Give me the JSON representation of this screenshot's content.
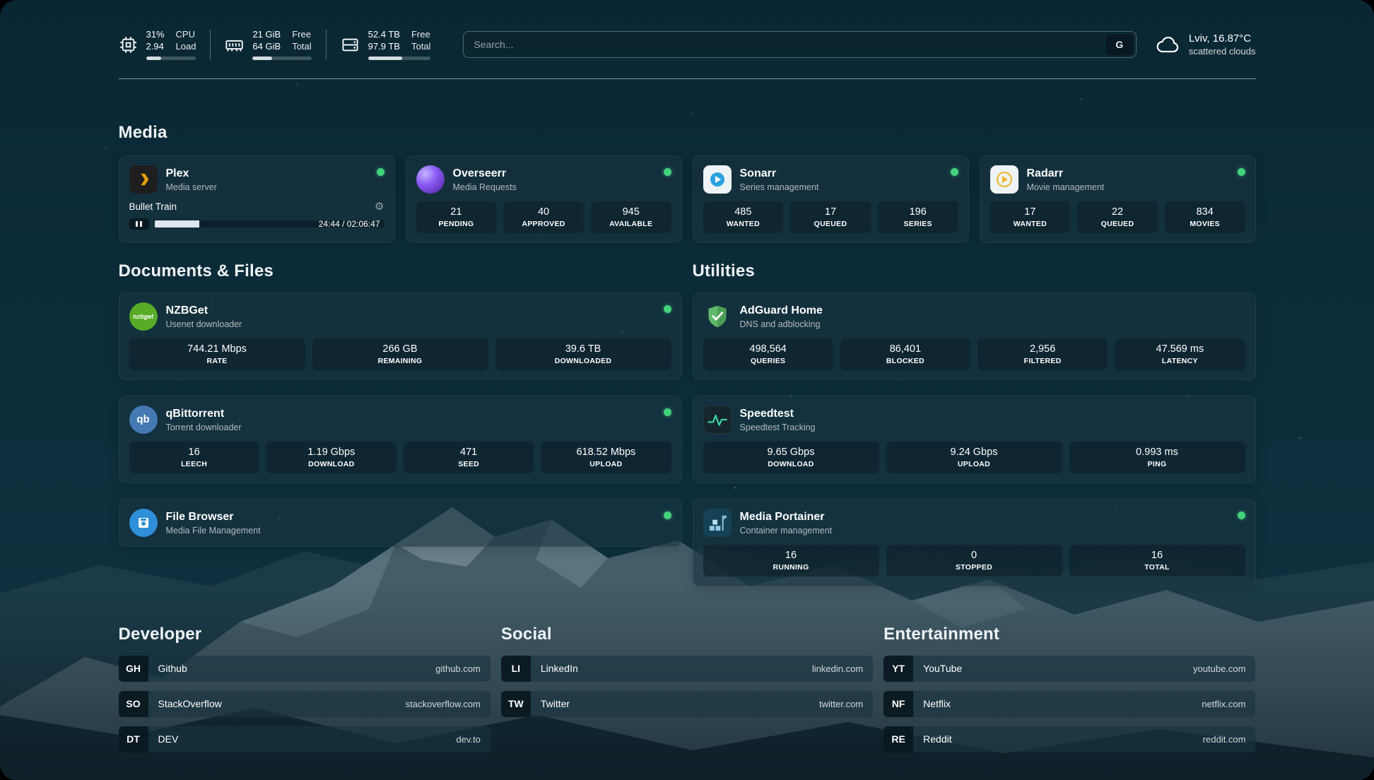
{
  "colors": {
    "status_ok": "#43d17c",
    "accent_plex": "#e5a00d",
    "bar_fill": "#d6dde1",
    "card_bg": "rgba(24,52,64,0.62)"
  },
  "topbar": {
    "cpu": {
      "value": "31%",
      "sub": "2.94",
      "label_top": "CPU",
      "label_bottom": "Load",
      "percent": 31
    },
    "ram": {
      "value": "21 GiB",
      "sub": "64 GiB",
      "label_top": "Free",
      "label_bottom": "Total",
      "percent": 33
    },
    "disk": {
      "value": "52.4 TB",
      "sub": "97.9 TB",
      "label_top": "Free",
      "label_bottom": "Total",
      "percent": 54
    },
    "search": {
      "placeholder": "Search...",
      "button_label": "G"
    },
    "weather": {
      "location": "Lviv, 16.87°C",
      "condition": "scattered clouds"
    }
  },
  "media": {
    "title": "Media",
    "plex": {
      "name": "Plex",
      "subtitle": "Media server",
      "now_playing": {
        "title": "Bullet Train",
        "time": "24:44 / 02:06:47",
        "progress_percent": 19.5
      }
    },
    "overseerr": {
      "name": "Overseerr",
      "subtitle": "Media Requests",
      "stats": [
        {
          "value": "21",
          "label": "PENDING"
        },
        {
          "value": "40",
          "label": "APPROVED"
        },
        {
          "value": "945",
          "label": "AVAILABLE"
        }
      ]
    },
    "sonarr": {
      "name": "Sonarr",
      "subtitle": "Series management",
      "stats": [
        {
          "value": "485",
          "label": "WANTED"
        },
        {
          "value": "17",
          "label": "QUEUED"
        },
        {
          "value": "196",
          "label": "SERIES"
        }
      ]
    },
    "radarr": {
      "name": "Radarr",
      "subtitle": "Movie management",
      "stats": [
        {
          "value": "17",
          "label": "WANTED"
        },
        {
          "value": "22",
          "label": "QUEUED"
        },
        {
          "value": "834",
          "label": "MOVIES"
        }
      ]
    }
  },
  "documents": {
    "title": "Documents & Files",
    "nzbget": {
      "name": "NZBGet",
      "subtitle": "Usenet downloader",
      "icon_text": "nzbget",
      "stats": [
        {
          "value": "744.21 Mbps",
          "label": "RATE"
        },
        {
          "value": "266 GB",
          "label": "REMAINING"
        },
        {
          "value": "39.6 TB",
          "label": "DOWNLOADED"
        }
      ]
    },
    "qbittorrent": {
      "name": "qBittorrent",
      "subtitle": "Torrent downloader",
      "icon_text": "qb",
      "stats": [
        {
          "value": "16",
          "label": "LEECH"
        },
        {
          "value": "1.19 Gbps",
          "label": "DOWNLOAD"
        },
        {
          "value": "471",
          "label": "SEED"
        },
        {
          "value": "618.52 Mbps",
          "label": "UPLOAD"
        }
      ]
    },
    "filebrowser": {
      "name": "File Browser",
      "subtitle": "Media File Management"
    }
  },
  "utilities": {
    "title": "Utilities",
    "adguard": {
      "name": "AdGuard Home",
      "subtitle": "DNS and adblocking",
      "stats": [
        {
          "value": "498,564",
          "label": "QUERIES"
        },
        {
          "value": "86,401",
          "label": "BLOCKED"
        },
        {
          "value": "2,956",
          "label": "FILTERED"
        },
        {
          "value": "47.569 ms",
          "label": "LATENCY"
        }
      ]
    },
    "speedtest": {
      "name": "Speedtest",
      "subtitle": "Speedtest Tracking",
      "stats": [
        {
          "value": "9.65 Gbps",
          "label": "DOWNLOAD"
        },
        {
          "value": "9.24 Gbps",
          "label": "UPLOAD"
        },
        {
          "value": "0.993 ms",
          "label": "PING"
        }
      ]
    },
    "portainer": {
      "name": "Media Portainer",
      "subtitle": "Container management",
      "stats": [
        {
          "value": "16",
          "label": "RUNNING"
        },
        {
          "value": "0",
          "label": "STOPPED"
        },
        {
          "value": "16",
          "label": "TOTAL"
        }
      ]
    }
  },
  "bookmarks": {
    "developer": {
      "title": "Developer",
      "items": [
        {
          "abbr": "GH",
          "name": "Github",
          "url": "github.com"
        },
        {
          "abbr": "SO",
          "name": "StackOverflow",
          "url": "stackoverflow.com"
        },
        {
          "abbr": "DT",
          "name": "DEV",
          "url": "dev.to"
        }
      ]
    },
    "social": {
      "title": "Social",
      "items": [
        {
          "abbr": "LI",
          "name": "LinkedIn",
          "url": "linkedin.com"
        },
        {
          "abbr": "TW",
          "name": "Twitter",
          "url": "twitter.com"
        }
      ]
    },
    "entertainment": {
      "title": "Entertainment",
      "items": [
        {
          "abbr": "YT",
          "name": "YouTube",
          "url": "youtube.com"
        },
        {
          "abbr": "NF",
          "name": "Netflix",
          "url": "netflix.com"
        },
        {
          "abbr": "RE",
          "name": "Reddit",
          "url": "reddit.com"
        }
      ]
    }
  }
}
